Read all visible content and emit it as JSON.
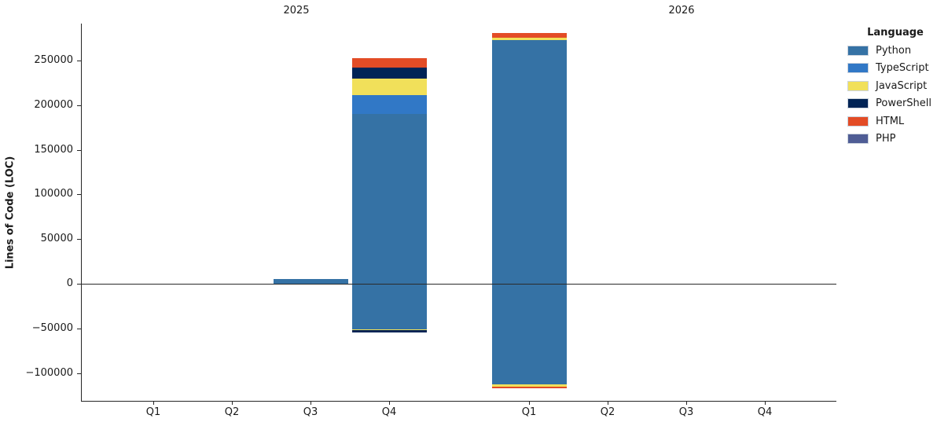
{
  "figure": {
    "facets": [
      {
        "title": "2025",
        "tick_labels": [
          "Q1",
          "Q2",
          "Q3",
          "Q4"
        ]
      },
      {
        "title": "2026",
        "tick_labels": [
          "Q1",
          "Q2",
          "Q3",
          "Q4"
        ]
      }
    ],
    "ylabel": "Lines of Code (LOC)",
    "y_ticks": [
      {
        "value": 250000,
        "label": "250000"
      },
      {
        "value": 200000,
        "label": "200000"
      },
      {
        "value": 150000,
        "label": "150000"
      },
      {
        "value": 100000,
        "label": "100000"
      },
      {
        "value": 50000,
        "label": "50000"
      },
      {
        "value": 0,
        "label": "0"
      },
      {
        "value": -50000,
        "label": "−50000"
      },
      {
        "value": -100000,
        "label": "−100000"
      }
    ]
  },
  "legend": {
    "title": "Language",
    "entries": [
      {
        "label": "Python",
        "color": "#3572A5"
      },
      {
        "label": "TypeScript",
        "color": "#3178C6"
      },
      {
        "label": "JavaScript",
        "color": "#F1E05A"
      },
      {
        "label": "PowerShell",
        "color": "#012456"
      },
      {
        "label": "HTML",
        "color": "#E34C26"
      },
      {
        "label": "PHP",
        "color": "#4F5D95"
      }
    ]
  },
  "chart_data": {
    "type": "bar",
    "stacked": true,
    "title": "",
    "xlabel": "",
    "ylabel": "Lines of Code (LOC)",
    "facets": [
      "2025",
      "2026"
    ],
    "categories": [
      "2025 Q1",
      "2025 Q2",
      "2025 Q3",
      "2025 Q4",
      "2026 Q1",
      "2026 Q2",
      "2026 Q3",
      "2026 Q4"
    ],
    "series": [
      {
        "name": "Python",
        "color": "#3572A5",
        "positive": [
          0,
          0,
          5000,
          190000,
          273000,
          0,
          0,
          0
        ],
        "negative": [
          0,
          0,
          0,
          -51000,
          -113000,
          0,
          0,
          0
        ]
      },
      {
        "name": "TypeScript",
        "color": "#3178C6",
        "positive": [
          0,
          0,
          0,
          21000,
          0,
          0,
          0,
          0
        ],
        "negative": [
          0,
          0,
          0,
          0,
          0,
          0,
          0,
          0
        ]
      },
      {
        "name": "JavaScript",
        "color": "#F1E05A",
        "positive": [
          0,
          0,
          0,
          19000,
          2500,
          0,
          0,
          0
        ],
        "negative": [
          0,
          0,
          0,
          -1000,
          -2000,
          0,
          0,
          0
        ]
      },
      {
        "name": "PowerShell",
        "color": "#012456",
        "positive": [
          0,
          0,
          0,
          12000,
          0,
          0,
          0,
          0
        ],
        "negative": [
          0,
          0,
          0,
          -2500,
          0,
          0,
          0,
          0
        ]
      },
      {
        "name": "HTML",
        "color": "#E34C26",
        "positive": [
          0,
          0,
          0,
          11000,
          5000,
          0,
          0,
          0
        ],
        "negative": [
          0,
          0,
          0,
          0,
          -2000,
          0,
          0,
          0
        ]
      },
      {
        "name": "PHP",
        "color": "#4F5D95",
        "positive": [
          0,
          0,
          0,
          0,
          0,
          0,
          0,
          0
        ],
        "negative": [
          0,
          0,
          0,
          0,
          0,
          0,
          0,
          0
        ]
      }
    ],
    "ylim": [
      -131000,
      291000
    ],
    "y_ticks": [
      250000,
      200000,
      150000,
      100000,
      50000,
      0,
      -50000,
      -100000
    ],
    "grid": false,
    "zero_line": true,
    "legend_position": "upper-right-outside"
  }
}
